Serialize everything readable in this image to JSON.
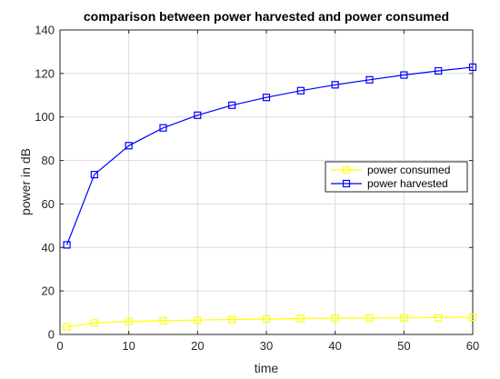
{
  "chart_data": {
    "type": "line",
    "title": "comparison between power harvested and power consumed",
    "xlabel": "time",
    "ylabel": "power in dB",
    "xlim": [
      0,
      60
    ],
    "ylim": [
      0,
      140
    ],
    "xticks": [
      0,
      10,
      20,
      30,
      40,
      50,
      60
    ],
    "yticks": [
      0,
      20,
      40,
      60,
      80,
      100,
      120,
      140
    ],
    "grid": true,
    "legend_position": "right",
    "x": [
      1,
      5,
      10,
      15,
      20,
      25,
      30,
      35,
      40,
      45,
      50,
      55,
      60
    ],
    "series": [
      {
        "name": "power consumed",
        "color": "#ffff00",
        "marker": "square",
        "values": [
          3.5,
          5.3,
          6.0,
          6.3,
          6.6,
          6.9,
          7.1,
          7.3,
          7.5,
          7.6,
          7.7,
          7.8,
          7.9
        ]
      },
      {
        "name": "power harvested",
        "color": "#0000ff",
        "marker": "square",
        "values": [
          41.2,
          73.5,
          86.8,
          95.0,
          100.8,
          105.4,
          109.0,
          112.1,
          114.8,
          117.1,
          119.3,
          121.2,
          122.9
        ]
      }
    ]
  }
}
